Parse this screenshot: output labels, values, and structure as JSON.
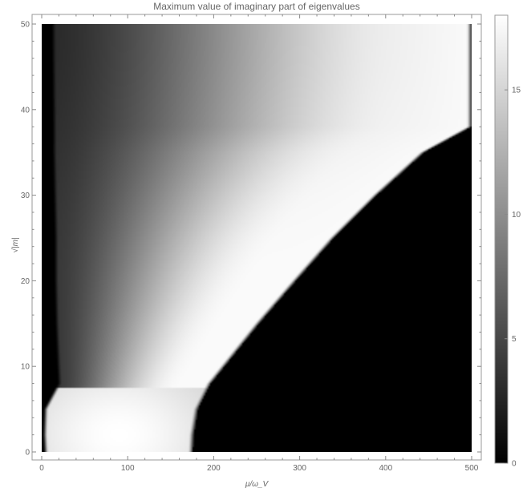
{
  "chart_data": {
    "type": "heatmap",
    "title": "Maximum value of imaginary part of eigenvalues",
    "xlabel": "μ/ω_V",
    "ylabel": "√|m|",
    "xlim": [
      -5,
      505
    ],
    "ylim": [
      -1,
      50
    ],
    "data_x_range": [
      0,
      500
    ],
    "data_y_range": [
      0,
      50
    ],
    "x_ticks": [
      0,
      100,
      200,
      300,
      400,
      500
    ],
    "y_ticks": [
      0,
      10,
      20,
      30,
      40,
      50
    ],
    "colorbar": {
      "range": [
        0,
        18
      ],
      "ticks": [
        0,
        5,
        10,
        15
      ],
      "colormap": [
        "#000000",
        "#ffffff"
      ]
    },
    "grid": false,
    "region_descriptions": [],
    "boundary_points": [
      {
        "y": 0,
        "x_left": 2,
        "x_edge": 176
      },
      {
        "y": 2,
        "x_left": 1,
        "x_edge": 177
      },
      {
        "y": 5,
        "x_left": 2,
        "x_edge": 182
      },
      {
        "y": 8,
        "x_left": 18,
        "x_edge": 197
      },
      {
        "y": 10,
        "x_left": 17,
        "x_edge": 213
      },
      {
        "y": 15,
        "x_left": 15,
        "x_edge": 253
      },
      {
        "y": 20,
        "x_left": 14,
        "x_edge": 296
      },
      {
        "y": 25,
        "x_left": 14,
        "x_edge": 340
      },
      {
        "y": 30,
        "x_left": 13,
        "x_edge": 390
      },
      {
        "y": 35,
        "x_left": 12,
        "x_edge": 445
      },
      {
        "y": 38,
        "x_left": 12,
        "x_edge": 500
      },
      {
        "y": 50,
        "x_left": 11,
        "x_edge": 500
      }
    ],
    "peak_values": [
      {
        "x": 90,
        "y": 2,
        "value": 18
      },
      {
        "x": 300,
        "y": 40,
        "value": 17.5
      }
    ]
  }
}
